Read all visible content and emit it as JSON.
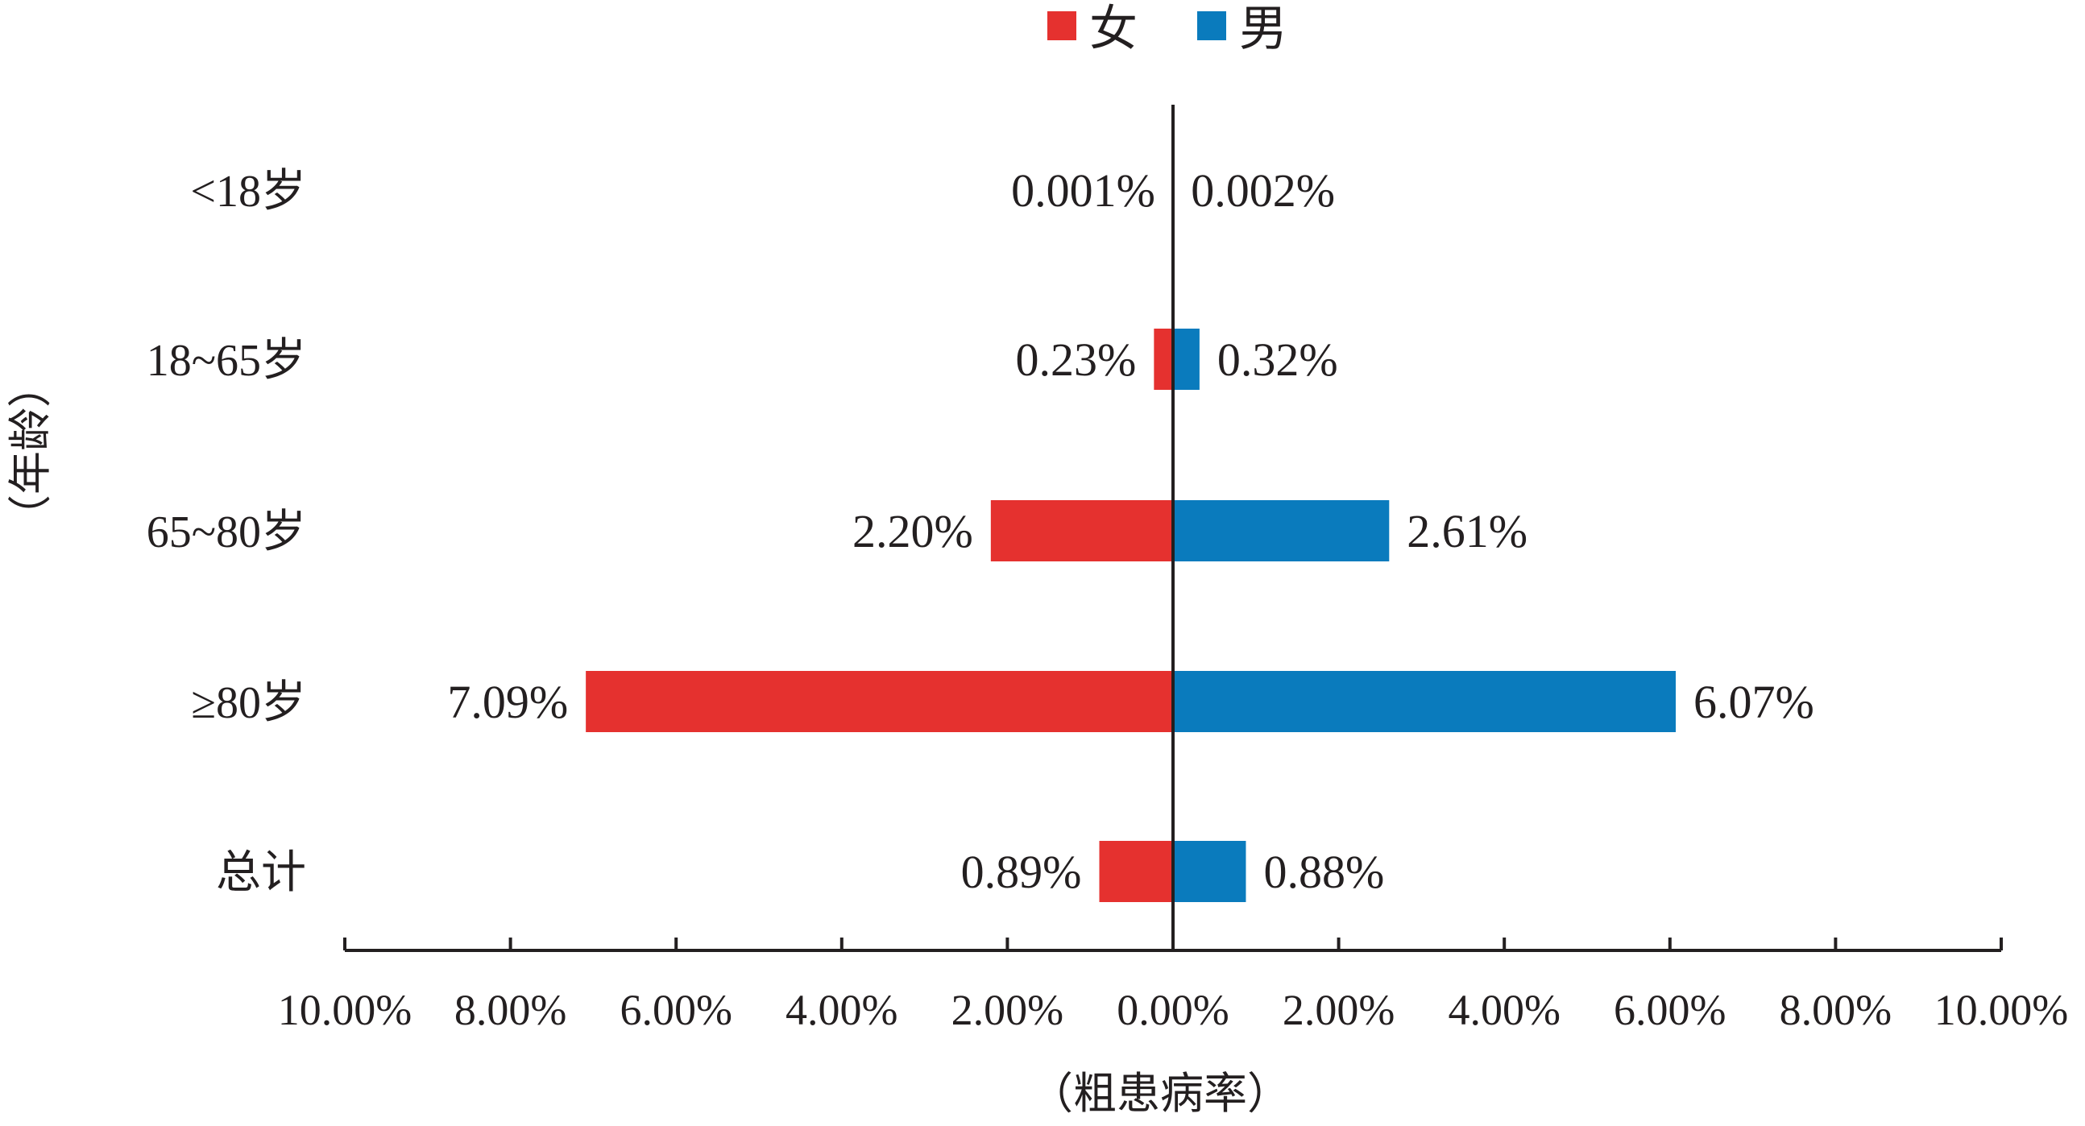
{
  "chart_data": {
    "type": "bar",
    "orientation": "horizontal-diverging",
    "categories": [
      "<18岁",
      "18~65岁",
      "65~80岁",
      "≥80岁",
      "总计"
    ],
    "series": [
      {
        "name": "女",
        "color": "#e5312f",
        "side": "left",
        "values": [
          0.001,
          0.23,
          2.2,
          7.09,
          0.89
        ],
        "labels": [
          "0.001%",
          "0.23%",
          "2.20%",
          "7.09%",
          "0.89%"
        ]
      },
      {
        "name": "男",
        "color": "#0a7bbd",
        "side": "right",
        "values": [
          0.002,
          0.32,
          2.61,
          6.07,
          0.88
        ],
        "labels": [
          "0.002%",
          "0.32%",
          "2.61%",
          "6.07%",
          "0.88%"
        ]
      }
    ],
    "x_ticks": [
      "10.00%",
      "8.00%",
      "6.00%",
      "4.00%",
      "2.00%",
      "0.00%",
      "2.00%",
      "4.00%",
      "6.00%",
      "8.00%",
      "10.00%"
    ],
    "xlim": [
      -10,
      10
    ],
    "xlabel": "（粗患病率）",
    "ylabel": "（年龄）",
    "legend_position": "top-center",
    "grid": false
  }
}
